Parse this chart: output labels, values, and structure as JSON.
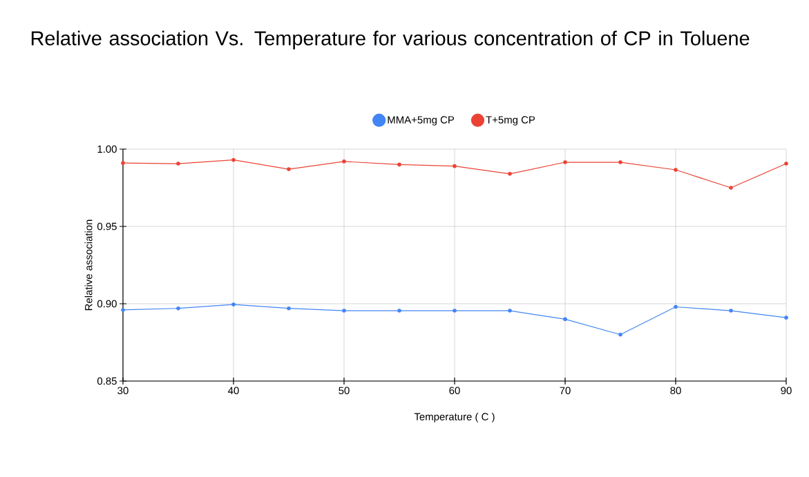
{
  "chart_data": {
    "type": "line",
    "title": "Relative association Vs. Temperature for various concentration of CP in Toluene",
    "xlabel": "Temperature ( C )",
    "ylabel": "Relative association",
    "x": [
      30,
      35,
      40,
      45,
      50,
      55,
      60,
      65,
      70,
      75,
      80,
      85,
      90
    ],
    "series": [
      {
        "name": "MMA+5mg CP",
        "color": "#4285f4",
        "values": [
          0.896,
          0.897,
          0.8995,
          0.897,
          0.8955,
          0.8955,
          0.8955,
          0.8955,
          0.89,
          0.88,
          0.898,
          0.8955,
          0.891
        ]
      },
      {
        "name": "T+5mg CP",
        "color": "#ea4335",
        "values": [
          0.991,
          0.9906,
          0.993,
          0.987,
          0.992,
          0.99,
          0.989,
          0.984,
          0.9915,
          0.9915,
          0.9866,
          0.975,
          0.9906
        ]
      }
    ],
    "xlim": [
      30,
      90
    ],
    "ylim": [
      0.85,
      1.0
    ],
    "xticks": [
      30,
      40,
      50,
      60,
      70,
      80,
      90
    ],
    "yticks": [
      {
        "value": 0.85,
        "label": "0.85"
      },
      {
        "value": 0.9,
        "label": "0.90"
      },
      {
        "value": 0.95,
        "label": "0.95"
      },
      {
        "value": 1.0,
        "label": "1.00"
      }
    ],
    "grid": true,
    "legend": "top",
    "marker": "circle"
  }
}
